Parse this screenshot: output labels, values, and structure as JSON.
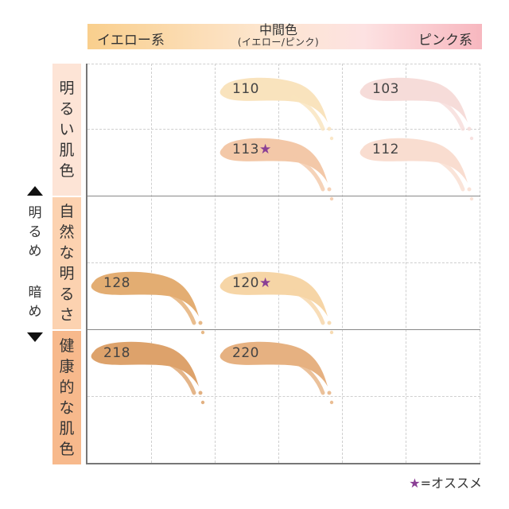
{
  "header": {
    "left": "イエロー系",
    "middle": "中間色",
    "middle_sub": "(イエロー/ピンク)",
    "right": "ピンク系"
  },
  "rows": [
    {
      "label": [
        "明",
        "る",
        "い",
        "肌",
        "色"
      ],
      "color": "#fde4d6"
    },
    {
      "label": [
        "自",
        "然",
        "な",
        "明",
        "る",
        "さ"
      ],
      "color": "#fcd2b0"
    },
    {
      "label": [
        "健",
        "康",
        "的",
        "な",
        "肌",
        "色"
      ],
      "color": "#f7b98c"
    }
  ],
  "side": {
    "top_text": [
      "明",
      "る",
      "め"
    ],
    "bottom_text": [
      "暗",
      "め"
    ]
  },
  "swatches": [
    {
      "code": "110",
      "star": "",
      "color": "#f9e3bd"
    },
    {
      "code": "103",
      "star": "",
      "color": "#f6dcd9"
    },
    {
      "code": "113",
      "star": "★",
      "color": "#f3c8a8"
    },
    {
      "code": "112",
      "star": "",
      "color": "#f9ddd0"
    },
    {
      "code": "128",
      "star": "",
      "color": "#e3ad72"
    },
    {
      "code": "120",
      "star": "★",
      "color": "#f6d5a6"
    },
    {
      "code": "218",
      "star": "",
      "color": "#dda26b"
    },
    {
      "code": "220",
      "star": "",
      "color": "#e6b181"
    }
  ],
  "legend": {
    "star": "★",
    "text": "=オススメ",
    "star_color": "#8a3f95"
  }
}
